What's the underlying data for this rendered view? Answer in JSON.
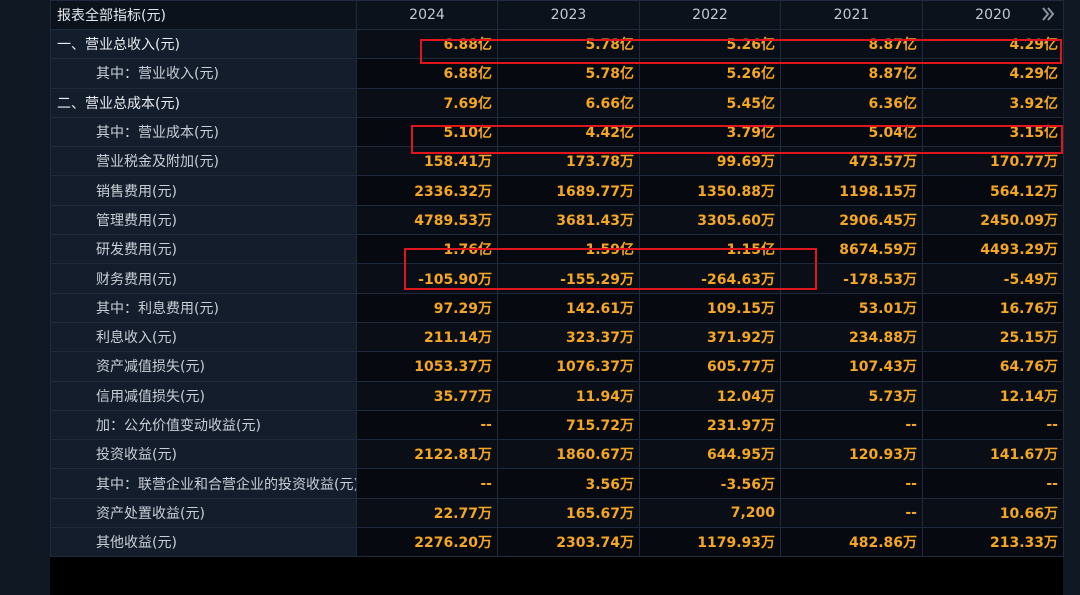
{
  "header": {
    "label": "报表全部指标(元)",
    "years": [
      "2024",
      "2023",
      "2022",
      "2021",
      "2020"
    ],
    "next_icon": "double-chevron-right-icon"
  },
  "rows": [
    {
      "label": "一、营业总收入(元)",
      "level": 0,
      "values": [
        "6.88亿",
        "5.78亿",
        "5.26亿",
        "8.87亿",
        "4.29亿"
      ]
    },
    {
      "label": "其中：营业收入(元)",
      "level": 1,
      "values": [
        "6.88亿",
        "5.78亿",
        "5.26亿",
        "8.87亿",
        "4.29亿"
      ]
    },
    {
      "label": "二、营业总成本(元)",
      "level": 0,
      "values": [
        "7.69亿",
        "6.66亿",
        "5.45亿",
        "6.36亿",
        "3.92亿"
      ]
    },
    {
      "label": "其中：营业成本(元)",
      "level": 1,
      "values": [
        "5.10亿",
        "4.42亿",
        "3.79亿",
        "5.04亿",
        "3.15亿"
      ]
    },
    {
      "label": "营业税金及附加(元)",
      "level": 1,
      "values": [
        "158.41万",
        "173.78万",
        "99.69万",
        "473.57万",
        "170.77万"
      ]
    },
    {
      "label": "销售费用(元)",
      "level": 1,
      "values": [
        "2336.32万",
        "1689.77万",
        "1350.88万",
        "1198.15万",
        "564.12万"
      ]
    },
    {
      "label": "管理费用(元)",
      "level": 1,
      "values": [
        "4789.53万",
        "3681.43万",
        "3305.60万",
        "2906.45万",
        "2450.09万"
      ]
    },
    {
      "label": "研发费用(元)",
      "level": 1,
      "values": [
        "1.76亿",
        "1.59亿",
        "1.15亿",
        "8674.59万",
        "4493.29万"
      ]
    },
    {
      "label": "财务费用(元)",
      "level": 1,
      "values": [
        "-105.90万",
        "-155.29万",
        "-264.63万",
        "-178.53万",
        "-5.49万"
      ]
    },
    {
      "label": "其中：利息费用(元)",
      "level": 1,
      "values": [
        "97.29万",
        "142.61万",
        "109.15万",
        "53.01万",
        "16.76万"
      ]
    },
    {
      "label": "利息收入(元)",
      "level": 1,
      "values": [
        "211.14万",
        "323.37万",
        "371.92万",
        "234.88万",
        "25.15万"
      ]
    },
    {
      "label": "资产减值损失(元)",
      "level": 1,
      "values": [
        "1053.37万",
        "1076.37万",
        "605.77万",
        "107.43万",
        "64.76万"
      ]
    },
    {
      "label": "信用减值损失(元)",
      "level": 1,
      "values": [
        "35.77万",
        "11.94万",
        "12.04万",
        "5.73万",
        "12.14万"
      ]
    },
    {
      "label": "加：公允价值变动收益(元)",
      "level": 1,
      "values": [
        "--",
        "715.72万",
        "231.97万",
        "--",
        "--"
      ]
    },
    {
      "label": "投资收益(元)",
      "level": 1,
      "values": [
        "2122.81万",
        "1860.67万",
        "644.95万",
        "120.93万",
        "141.67万"
      ]
    },
    {
      "label": "其中：联营企业和合营企业的投资收益(元)",
      "level": 1,
      "values": [
        "--",
        "3.56万",
        "-3.56万",
        "--",
        "--"
      ]
    },
    {
      "label": "资产处置收益(元)",
      "level": 1,
      "values": [
        "22.77万",
        "165.67万",
        "7,200",
        "--",
        "10.66万"
      ]
    },
    {
      "label": "其他收益(元)",
      "level": 1,
      "values": [
        "2276.20万",
        "2303.74万",
        "1179.93万",
        "482.86万",
        "213.33万"
      ]
    }
  ],
  "annotation_color": "#e0161d"
}
